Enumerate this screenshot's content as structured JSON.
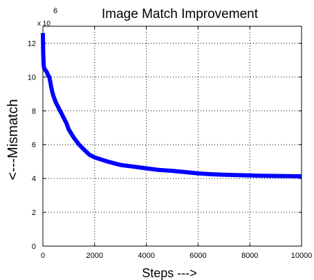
{
  "chart_data": {
    "type": "line",
    "title": "Image Match Improvement",
    "xlabel": "Steps --->",
    "ylabel": "<---Mismatch",
    "y_exponent_prefix": "x 10",
    "y_exponent": "6",
    "xlim": [
      0,
      10000
    ],
    "ylim": [
      0,
      13
    ],
    "xticks": [
      0,
      2000,
      4000,
      6000,
      8000,
      10000
    ],
    "yticks": [
      0,
      2,
      4,
      6,
      8,
      10,
      12
    ],
    "grid": true,
    "color": "#0000ff",
    "series": [
      {
        "x": [
          0,
          10,
          30,
          50,
          100,
          150,
          200,
          250,
          300,
          350,
          400,
          500,
          600,
          700,
          800,
          900,
          1000,
          1200,
          1400,
          1600,
          1800,
          2000,
          2500,
          3000,
          3500,
          4000,
          4500,
          5000,
          5500,
          6000,
          6500,
          7000,
          7500,
          8000,
          8500,
          9000,
          9500,
          10000
        ],
        "y": [
          12.6,
          11.5,
          10.7,
          10.5,
          10.4,
          10.3,
          10.1,
          10.0,
          9.6,
          9.2,
          8.9,
          8.5,
          8.2,
          7.9,
          7.6,
          7.3,
          6.9,
          6.4,
          6.0,
          5.7,
          5.4,
          5.25,
          5.0,
          4.8,
          4.7,
          4.6,
          4.5,
          4.45,
          4.38,
          4.3,
          4.25,
          4.22,
          4.2,
          4.18,
          4.16,
          4.15,
          4.14,
          4.13
        ]
      }
    ]
  }
}
